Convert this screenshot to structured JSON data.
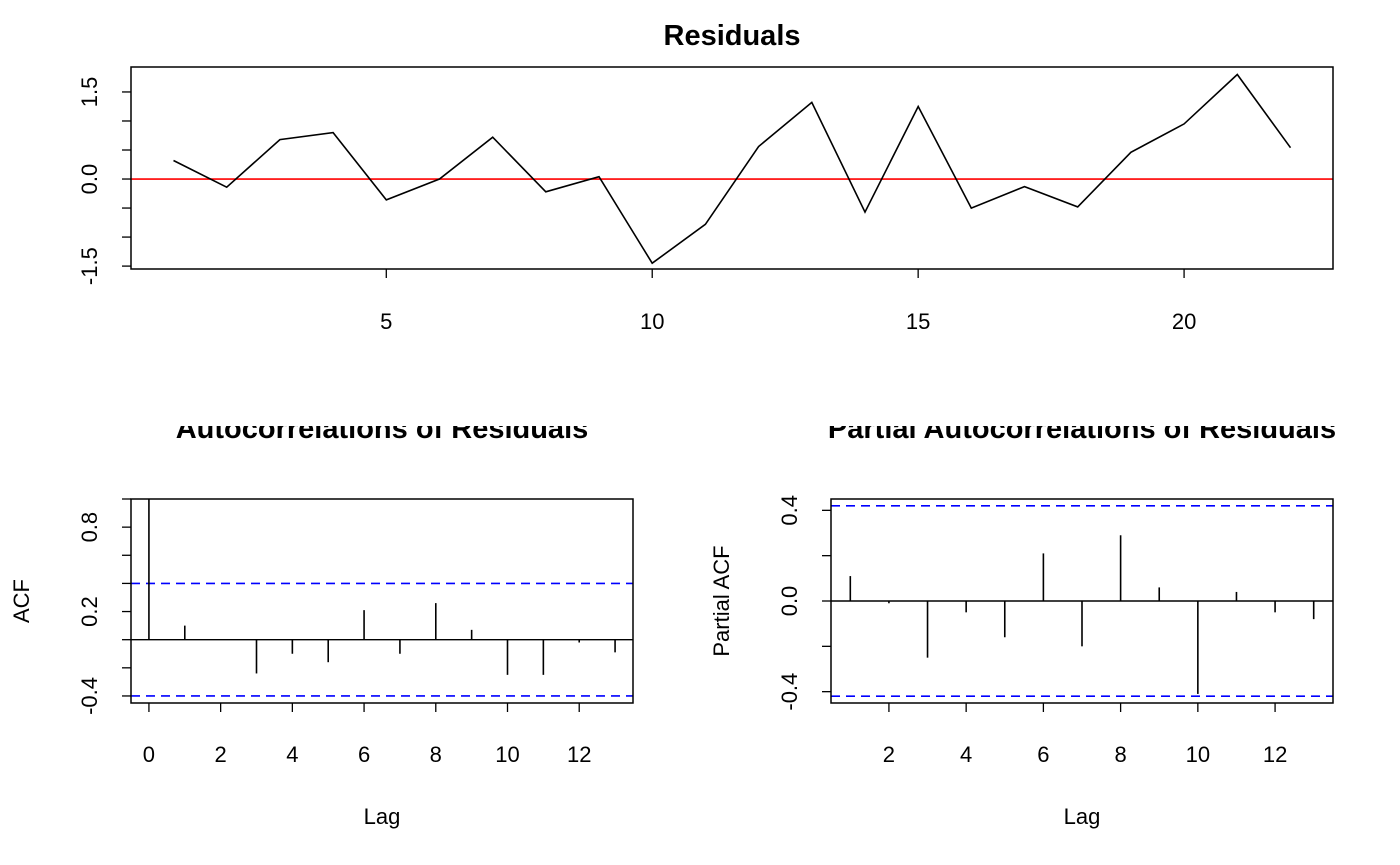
{
  "chart_data": [
    {
      "type": "line",
      "title": "Residuals",
      "xlabel": "",
      "ylabel": "",
      "xlim": [
        0.2,
        22.8
      ],
      "ylim": [
        -1.55,
        1.93
      ],
      "x_ticks": [
        5,
        10,
        15,
        20
      ],
      "y_ticks": [
        -1.5,
        -1.0,
        -0.5,
        0.0,
        0.5,
        1.0,
        1.5
      ],
      "y_tick_labels": [
        "-1.5",
        "",
        "",
        "0.0",
        "",
        "",
        "1.5"
      ],
      "x": [
        1,
        2,
        3,
        4,
        5,
        6,
        7,
        8,
        9,
        10,
        11,
        12,
        13,
        14,
        15,
        16,
        17,
        18,
        19,
        20,
        21,
        22
      ],
      "values": [
        0.32,
        -0.14,
        0.68,
        0.8,
        -0.36,
        0.0,
        0.72,
        -0.22,
        0.04,
        -1.45,
        -0.78,
        0.56,
        1.32,
        -0.57,
        1.25,
        -0.5,
        -0.13,
        -0.48,
        0.46,
        0.95,
        1.8,
        0.54
      ],
      "reference_line": 0,
      "line_color": "#000000",
      "reference_color": "#ff0000",
      "grid": false
    },
    {
      "type": "bar",
      "title": "Autocorrelations of Residuals",
      "xlabel": "Lag",
      "ylabel": "ACF",
      "xlim": [
        -0.5,
        13.5
      ],
      "ylim": [
        -0.45,
        1.0
      ],
      "x_ticks": [
        0,
        2,
        4,
        6,
        8,
        10,
        12
      ],
      "y_ticks": [
        -0.4,
        -0.2,
        0.0,
        0.2,
        0.4,
        0.6,
        0.8,
        1.0
      ],
      "y_tick_labels": [
        "-0.4",
        "",
        "",
        "0.2",
        "",
        "",
        "0.8",
        ""
      ],
      "lags": [
        0,
        1,
        2,
        3,
        4,
        5,
        6,
        7,
        8,
        9,
        10,
        11,
        12,
        13
      ],
      "values": [
        1.0,
        0.1,
        0.0,
        -0.24,
        -0.1,
        -0.16,
        0.21,
        -0.1,
        0.26,
        0.07,
        -0.25,
        -0.25,
        -0.02,
        -0.09
      ],
      "confidence_bounds": [
        0.4,
        -0.4
      ],
      "bound_color": "#0000ff",
      "grid": false
    },
    {
      "type": "bar",
      "title": "Partial Autocorrelations of Residuals",
      "xlabel": "Lag",
      "ylabel": "Partial ACF",
      "xlim": [
        0.5,
        13.5
      ],
      "ylim": [
        -0.45,
        0.45
      ],
      "x_ticks": [
        2,
        4,
        6,
        8,
        10,
        12
      ],
      "y_ticks": [
        -0.4,
        -0.2,
        0.0,
        0.2,
        0.4
      ],
      "y_tick_labels": [
        "-0.4",
        "",
        "0.0",
        "",
        "0.4"
      ],
      "lags": [
        1,
        2,
        3,
        4,
        5,
        6,
        7,
        8,
        9,
        10,
        11,
        12,
        13
      ],
      "values": [
        0.11,
        -0.01,
        -0.25,
        -0.05,
        -0.16,
        0.21,
        -0.2,
        0.29,
        0.06,
        -0.41,
        0.04,
        -0.05,
        -0.08
      ],
      "confidence_bounds": [
        0.42,
        -0.42
      ],
      "bound_color": "#0000ff",
      "grid": false
    }
  ]
}
